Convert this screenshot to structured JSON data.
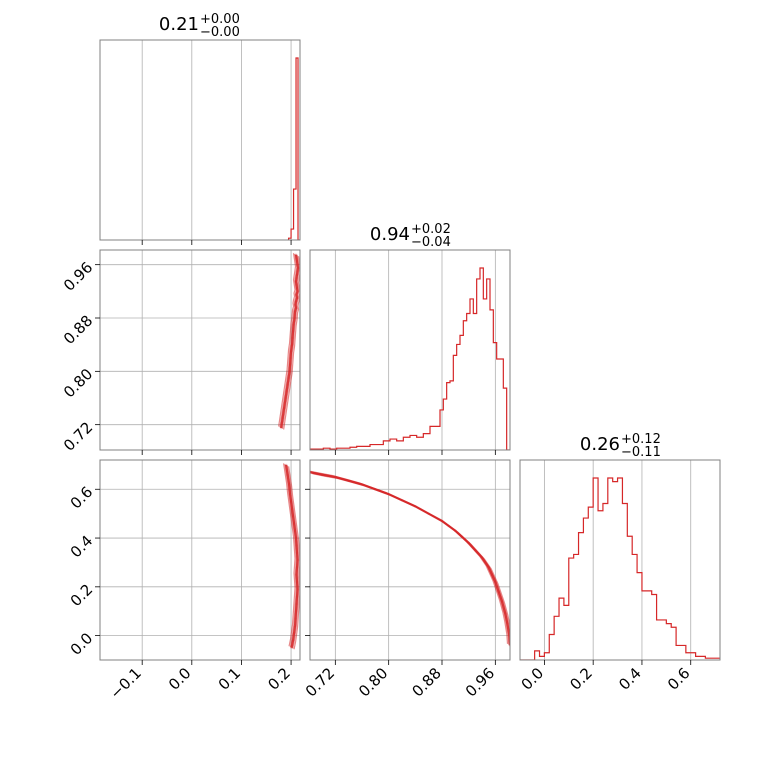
{
  "figure": {
    "color": "#d62728",
    "titles": [
      {
        "value": "0.21",
        "plus": "+0.00",
        "minus": "−0.00"
      },
      {
        "value": "0.94",
        "plus": "+0.02",
        "minus": "−0.04"
      },
      {
        "value": "0.26",
        "plus": "+0.12",
        "minus": "−0.11"
      }
    ]
  },
  "chart_data": {
    "type": "corner",
    "color": "#d62728",
    "grid": true,
    "parameters": [
      {
        "range": [
          -0.185,
          0.218
        ],
        "ticks": [
          -0.1,
          0.0,
          0.1,
          0.2
        ],
        "tick_labels": [
          "−0.1",
          "0.0",
          "0.1",
          "0.2"
        ],
        "summary": {
          "median": 0.21,
          "plus": 0.0,
          "minus": 0.0
        }
      },
      {
        "range": [
          0.682,
          0.982
        ],
        "ticks": [
          0.72,
          0.8,
          0.88,
          0.96
        ],
        "tick_labels": [
          "0.72",
          "0.80",
          "0.88",
          "0.96"
        ],
        "summary": {
          "median": 0.94,
          "plus": 0.02,
          "minus": 0.04
        }
      },
      {
        "range": [
          -0.1,
          0.72
        ],
        "ticks": [
          0.0,
          0.2,
          0.4,
          0.6
        ],
        "tick_labels": [
          "0.0",
          "0.2",
          "0.4",
          "0.6"
        ],
        "summary": {
          "median": 0.26,
          "plus": 0.12,
          "minus": 0.11
        }
      }
    ],
    "histograms": [
      {
        "parameter": 0,
        "bin_edges": [
          0.195,
          0.2,
          0.205,
          0.21,
          0.214,
          0.218
        ],
        "heights": [
          0.01,
          0.06,
          0.28,
          1.0,
          0.0
        ]
      },
      {
        "parameter": 1,
        "bin_edges": [
          0.682,
          0.692,
          0.702,
          0.712,
          0.722,
          0.732,
          0.742,
          0.752,
          0.762,
          0.772,
          0.782,
          0.792,
          0.802,
          0.812,
          0.822,
          0.832,
          0.842,
          0.852,
          0.862,
          0.872,
          0.877,
          0.882,
          0.887,
          0.892,
          0.897,
          0.902,
          0.907,
          0.912,
          0.917,
          0.922,
          0.927,
          0.932,
          0.937,
          0.942,
          0.947,
          0.952,
          0.957,
          0.962,
          0.967,
          0.972,
          0.977,
          0.982
        ],
        "heights": [
          0.005,
          0.005,
          0.01,
          0.005,
          0.01,
          0.01,
          0.015,
          0.02,
          0.02,
          0.03,
          0.03,
          0.05,
          0.06,
          0.05,
          0.07,
          0.08,
          0.07,
          0.09,
          0.13,
          0.13,
          0.22,
          0.28,
          0.37,
          0.38,
          0.52,
          0.58,
          0.63,
          0.71,
          0.75,
          0.83,
          0.75,
          0.94,
          1.0,
          0.83,
          0.94,
          0.77,
          0.59,
          0.5,
          0.5,
          0.34,
          0.0
        ]
      },
      {
        "parameter": 2,
        "bin_edges": [
          -0.1,
          -0.08,
          -0.06,
          -0.04,
          -0.02,
          0.0,
          0.02,
          0.04,
          0.06,
          0.08,
          0.1,
          0.12,
          0.14,
          0.16,
          0.18,
          0.2,
          0.22,
          0.24,
          0.26,
          0.28,
          0.3,
          0.32,
          0.34,
          0.36,
          0.38,
          0.4,
          0.42,
          0.44,
          0.46,
          0.48,
          0.5,
          0.52,
          0.54,
          0.56,
          0.58,
          0.6,
          0.62,
          0.64,
          0.66,
          0.68,
          0.7,
          0.72
        ],
        "heights": [
          0.0,
          0.0,
          0.0,
          0.05,
          0.02,
          0.04,
          0.14,
          0.24,
          0.34,
          0.3,
          0.56,
          0.58,
          0.7,
          0.78,
          0.84,
          1.0,
          0.82,
          0.86,
          1.0,
          0.98,
          1.0,
          0.86,
          0.68,
          0.58,
          0.48,
          0.38,
          0.38,
          0.36,
          0.22,
          0.22,
          0.2,
          0.18,
          0.08,
          0.08,
          0.04,
          0.04,
          0.02,
          0.02,
          0.01,
          0.01,
          0.01
        ]
      }
    ],
    "pairs": [
      {
        "x_param": 0,
        "y_param": 1,
        "points": [
          [
            0.21,
            0.975
          ],
          [
            0.211,
            0.97
          ],
          [
            0.212,
            0.965
          ],
          [
            0.213,
            0.96
          ],
          [
            0.214,
            0.955
          ],
          [
            0.213,
            0.95
          ],
          [
            0.212,
            0.945
          ],
          [
            0.211,
            0.94
          ],
          [
            0.21,
            0.935
          ],
          [
            0.211,
            0.93
          ],
          [
            0.212,
            0.925
          ],
          [
            0.213,
            0.92
          ],
          [
            0.211,
            0.915
          ],
          [
            0.212,
            0.91
          ],
          [
            0.21,
            0.905
          ],
          [
            0.209,
            0.9
          ],
          [
            0.21,
            0.895
          ],
          [
            0.208,
            0.89
          ],
          [
            0.207,
            0.88
          ],
          [
            0.205,
            0.87
          ],
          [
            0.204,
            0.86
          ],
          [
            0.203,
            0.85
          ],
          [
            0.202,
            0.84
          ],
          [
            0.2,
            0.83
          ],
          [
            0.199,
            0.82
          ],
          [
            0.198,
            0.81
          ],
          [
            0.197,
            0.8
          ],
          [
            0.195,
            0.79
          ],
          [
            0.193,
            0.78
          ],
          [
            0.191,
            0.77
          ],
          [
            0.189,
            0.76
          ],
          [
            0.186,
            0.745
          ],
          [
            0.183,
            0.73
          ],
          [
            0.18,
            0.715
          ]
        ]
      },
      {
        "x_param": 0,
        "y_param": 2,
        "points": [
          [
            0.19,
            0.7
          ],
          [
            0.193,
            0.66
          ],
          [
            0.196,
            0.62
          ],
          [
            0.198,
            0.58
          ],
          [
            0.2,
            0.55
          ],
          [
            0.202,
            0.52
          ],
          [
            0.204,
            0.49
          ],
          [
            0.206,
            0.46
          ],
          [
            0.208,
            0.43
          ],
          [
            0.21,
            0.4
          ],
          [
            0.211,
            0.37
          ],
          [
            0.212,
            0.34
          ],
          [
            0.213,
            0.31
          ],
          [
            0.212,
            0.28
          ],
          [
            0.211,
            0.25
          ],
          [
            0.212,
            0.22
          ],
          [
            0.213,
            0.19
          ],
          [
            0.212,
            0.16
          ],
          [
            0.211,
            0.13
          ],
          [
            0.21,
            0.1
          ],
          [
            0.209,
            0.07
          ],
          [
            0.208,
            0.04
          ],
          [
            0.206,
            0.01
          ],
          [
            0.204,
            -0.02
          ],
          [
            0.201,
            -0.05
          ]
        ]
      },
      {
        "x_param": 1,
        "y_param": 2,
        "points": [
          [
            0.682,
            0.67
          ],
          [
            0.7,
            0.66
          ],
          [
            0.72,
            0.65
          ],
          [
            0.74,
            0.635
          ],
          [
            0.76,
            0.62
          ],
          [
            0.78,
            0.6
          ],
          [
            0.8,
            0.58
          ],
          [
            0.82,
            0.555
          ],
          [
            0.84,
            0.53
          ],
          [
            0.86,
            0.5
          ],
          [
            0.88,
            0.47
          ],
          [
            0.89,
            0.45
          ],
          [
            0.9,
            0.43
          ],
          [
            0.91,
            0.405
          ],
          [
            0.92,
            0.38
          ],
          [
            0.93,
            0.35
          ],
          [
            0.94,
            0.32
          ],
          [
            0.95,
            0.28
          ],
          [
            0.955,
            0.25
          ],
          [
            0.96,
            0.22
          ],
          [
            0.965,
            0.18
          ],
          [
            0.97,
            0.14
          ],
          [
            0.975,
            0.09
          ],
          [
            0.978,
            0.05
          ],
          [
            0.981,
            0.0
          ],
          [
            0.982,
            -0.04
          ]
        ]
      }
    ]
  }
}
